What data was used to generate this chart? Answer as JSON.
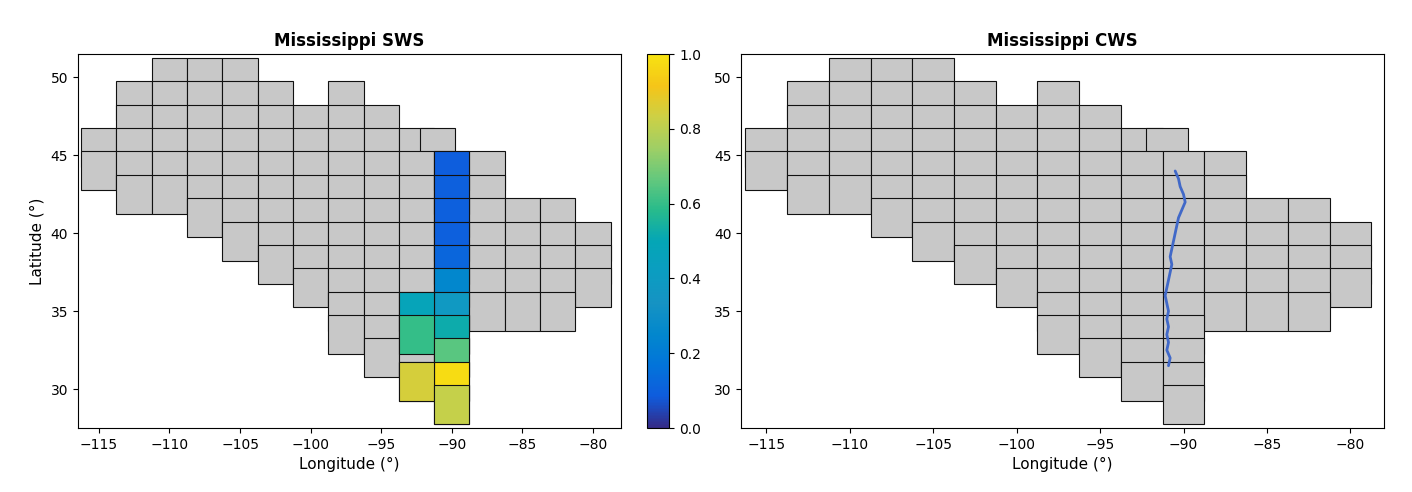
{
  "title_left": "Mississippi SWS",
  "title_right": "Mississippi CWS",
  "xlabel": "Longitude (°)",
  "ylabel": "Latitude (°)",
  "xlim": [
    -116.5,
    -78
  ],
  "ylim": [
    27.5,
    51.5
  ],
  "xticks": [
    -115,
    -110,
    -105,
    -100,
    -95,
    -90,
    -85,
    -80
  ],
  "yticks": [
    30,
    35,
    40,
    45,
    50
  ],
  "cell_size": 2.5,
  "grid_face": "#c8c8c8",
  "grid_edge": "#111111",
  "background": "#ffffff",
  "basin_rows": [
    [
      50.0,
      [
        -110.0,
        -107.5,
        -105.0
      ]
    ],
    [
      48.5,
      [
        -112.5,
        -110.0,
        -107.5,
        -105.0,
        -102.5,
        -97.5
      ]
    ],
    [
      47.0,
      [
        -112.5,
        -110.0,
        -107.5,
        -105.0,
        -102.5,
        -100.0,
        -97.5,
        -95.0
      ]
    ],
    [
      45.5,
      [
        -115.0,
        -112.5,
        -110.0,
        -107.5,
        -105.0,
        -102.5,
        -100.0,
        -97.5,
        -95.0,
        -92.5,
        -91.0
      ]
    ],
    [
      44.0,
      [
        -115.0,
        -112.5,
        -110.0,
        -107.5,
        -105.0,
        -102.5,
        -100.0,
        -97.5,
        -95.0,
        -92.5,
        -90.0,
        -87.5
      ]
    ],
    [
      42.5,
      [
        -112.5,
        -110.0,
        -107.5,
        -105.0,
        -102.5,
        -100.0,
        -97.5,
        -95.0,
        -92.5,
        -90.0,
        -87.5
      ]
    ],
    [
      41.0,
      [
        -107.5,
        -105.0,
        -102.5,
        -100.0,
        -97.5,
        -95.0,
        -92.5,
        -90.0,
        -87.5,
        -85.0,
        -82.5
      ]
    ],
    [
      39.5,
      [
        -105.0,
        -102.5,
        -100.0,
        -97.5,
        -95.0,
        -92.5,
        -90.0,
        -87.5,
        -85.0,
        -82.5,
        -80.0
      ]
    ],
    [
      38.0,
      [
        -102.5,
        -100.0,
        -97.5,
        -95.0,
        -92.5,
        -90.0,
        -87.5,
        -85.0,
        -82.5,
        -80.0
      ]
    ],
    [
      36.5,
      [
        -100.0,
        -97.5,
        -95.0,
        -92.5,
        -90.0,
        -87.5,
        -85.0,
        -82.5,
        -80.0
      ]
    ],
    [
      35.0,
      [
        -97.5,
        -95.0,
        -92.5,
        -90.0,
        -87.5,
        -85.0,
        -82.5
      ]
    ],
    [
      33.5,
      [
        -97.5,
        -95.0,
        -92.5,
        -90.0
      ]
    ],
    [
      32.0,
      [
        -95.0,
        -92.5,
        -90.0
      ]
    ],
    [
      30.5,
      [
        -92.5,
        -90.0
      ]
    ],
    [
      29.0,
      [
        -90.0
      ]
    ]
  ],
  "sws_cells": [
    {
      "lon": -90.0,
      "lat": 44.0,
      "value": 0.09
    },
    {
      "lon": -90.0,
      "lat": 42.5,
      "value": 0.1
    },
    {
      "lon": -90.0,
      "lat": 41.0,
      "value": 0.1
    },
    {
      "lon": -90.0,
      "lat": 39.5,
      "value": 0.1
    },
    {
      "lon": -90.0,
      "lat": 38.0,
      "value": 0.12
    },
    {
      "lon": -90.0,
      "lat": 36.5,
      "value": 0.25
    },
    {
      "lon": -90.0,
      "lat": 35.0,
      "value": 0.38
    },
    {
      "lon": -92.5,
      "lat": 35.0,
      "value": 0.48
    },
    {
      "lon": -90.0,
      "lat": 33.5,
      "value": 0.52
    },
    {
      "lon": -92.5,
      "lat": 33.5,
      "value": 0.6
    },
    {
      "lon": -90.0,
      "lat": 32.0,
      "value": 0.65
    },
    {
      "lon": -90.0,
      "lat": 30.5,
      "value": 0.98
    },
    {
      "lon": -92.5,
      "lat": 30.5,
      "value": 0.85
    },
    {
      "lon": -90.0,
      "lat": 29.0,
      "value": 0.82
    }
  ],
  "river_lons": [
    -90.5,
    -90.3,
    -90.2,
    -90.0,
    -89.9,
    -90.1,
    -90.3,
    -90.4,
    -90.5,
    -90.6,
    -90.7,
    -90.8,
    -90.7,
    -90.8,
    -90.9,
    -91.0,
    -91.1,
    -91.0,
    -90.9,
    -91.0,
    -90.9,
    -91.0,
    -90.9,
    -91.0,
    -90.8,
    -90.9
  ],
  "river_lats": [
    44.0,
    43.5,
    43.0,
    42.5,
    42.0,
    41.5,
    41.0,
    40.5,
    40.0,
    39.5,
    39.0,
    38.5,
    38.0,
    37.5,
    37.0,
    36.5,
    36.0,
    35.5,
    35.0,
    34.5,
    34.0,
    33.5,
    33.0,
    32.5,
    32.0,
    31.5
  ],
  "river_color": "#4169c8",
  "colorbar_ticks": [
    0,
    0.2,
    0.4,
    0.6,
    0.8,
    1.0
  ]
}
